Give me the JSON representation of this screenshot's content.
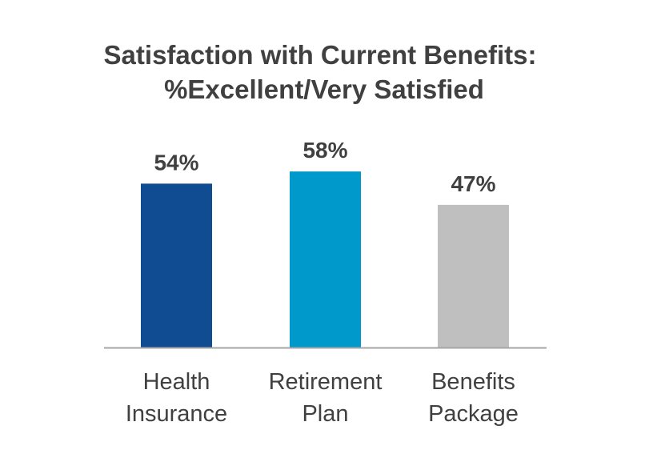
{
  "chart_data": {
    "type": "bar",
    "title": "Satisfaction with Current Benefits:",
    "subtitle": "%Excellent/Very Satisfied",
    "categories": [
      "Health Insurance",
      "Retirement Plan",
      "Benefits Package"
    ],
    "category_lines": [
      [
        "Health",
        "Insurance"
      ],
      [
        "Retirement",
        "Plan"
      ],
      [
        "Benefits",
        "Package"
      ]
    ],
    "values": [
      54,
      58,
      47
    ],
    "data_labels": [
      "54%",
      "58%",
      "47%"
    ],
    "bar_colors": [
      "#0F4C92",
      "#0099CC",
      "#BFBFBF"
    ],
    "axis_color": "#A6A6A6",
    "text_color": "#404040",
    "xlabel": "",
    "ylabel": "",
    "ylim": [
      0,
      100
    ],
    "grid": false,
    "legend": "none"
  }
}
